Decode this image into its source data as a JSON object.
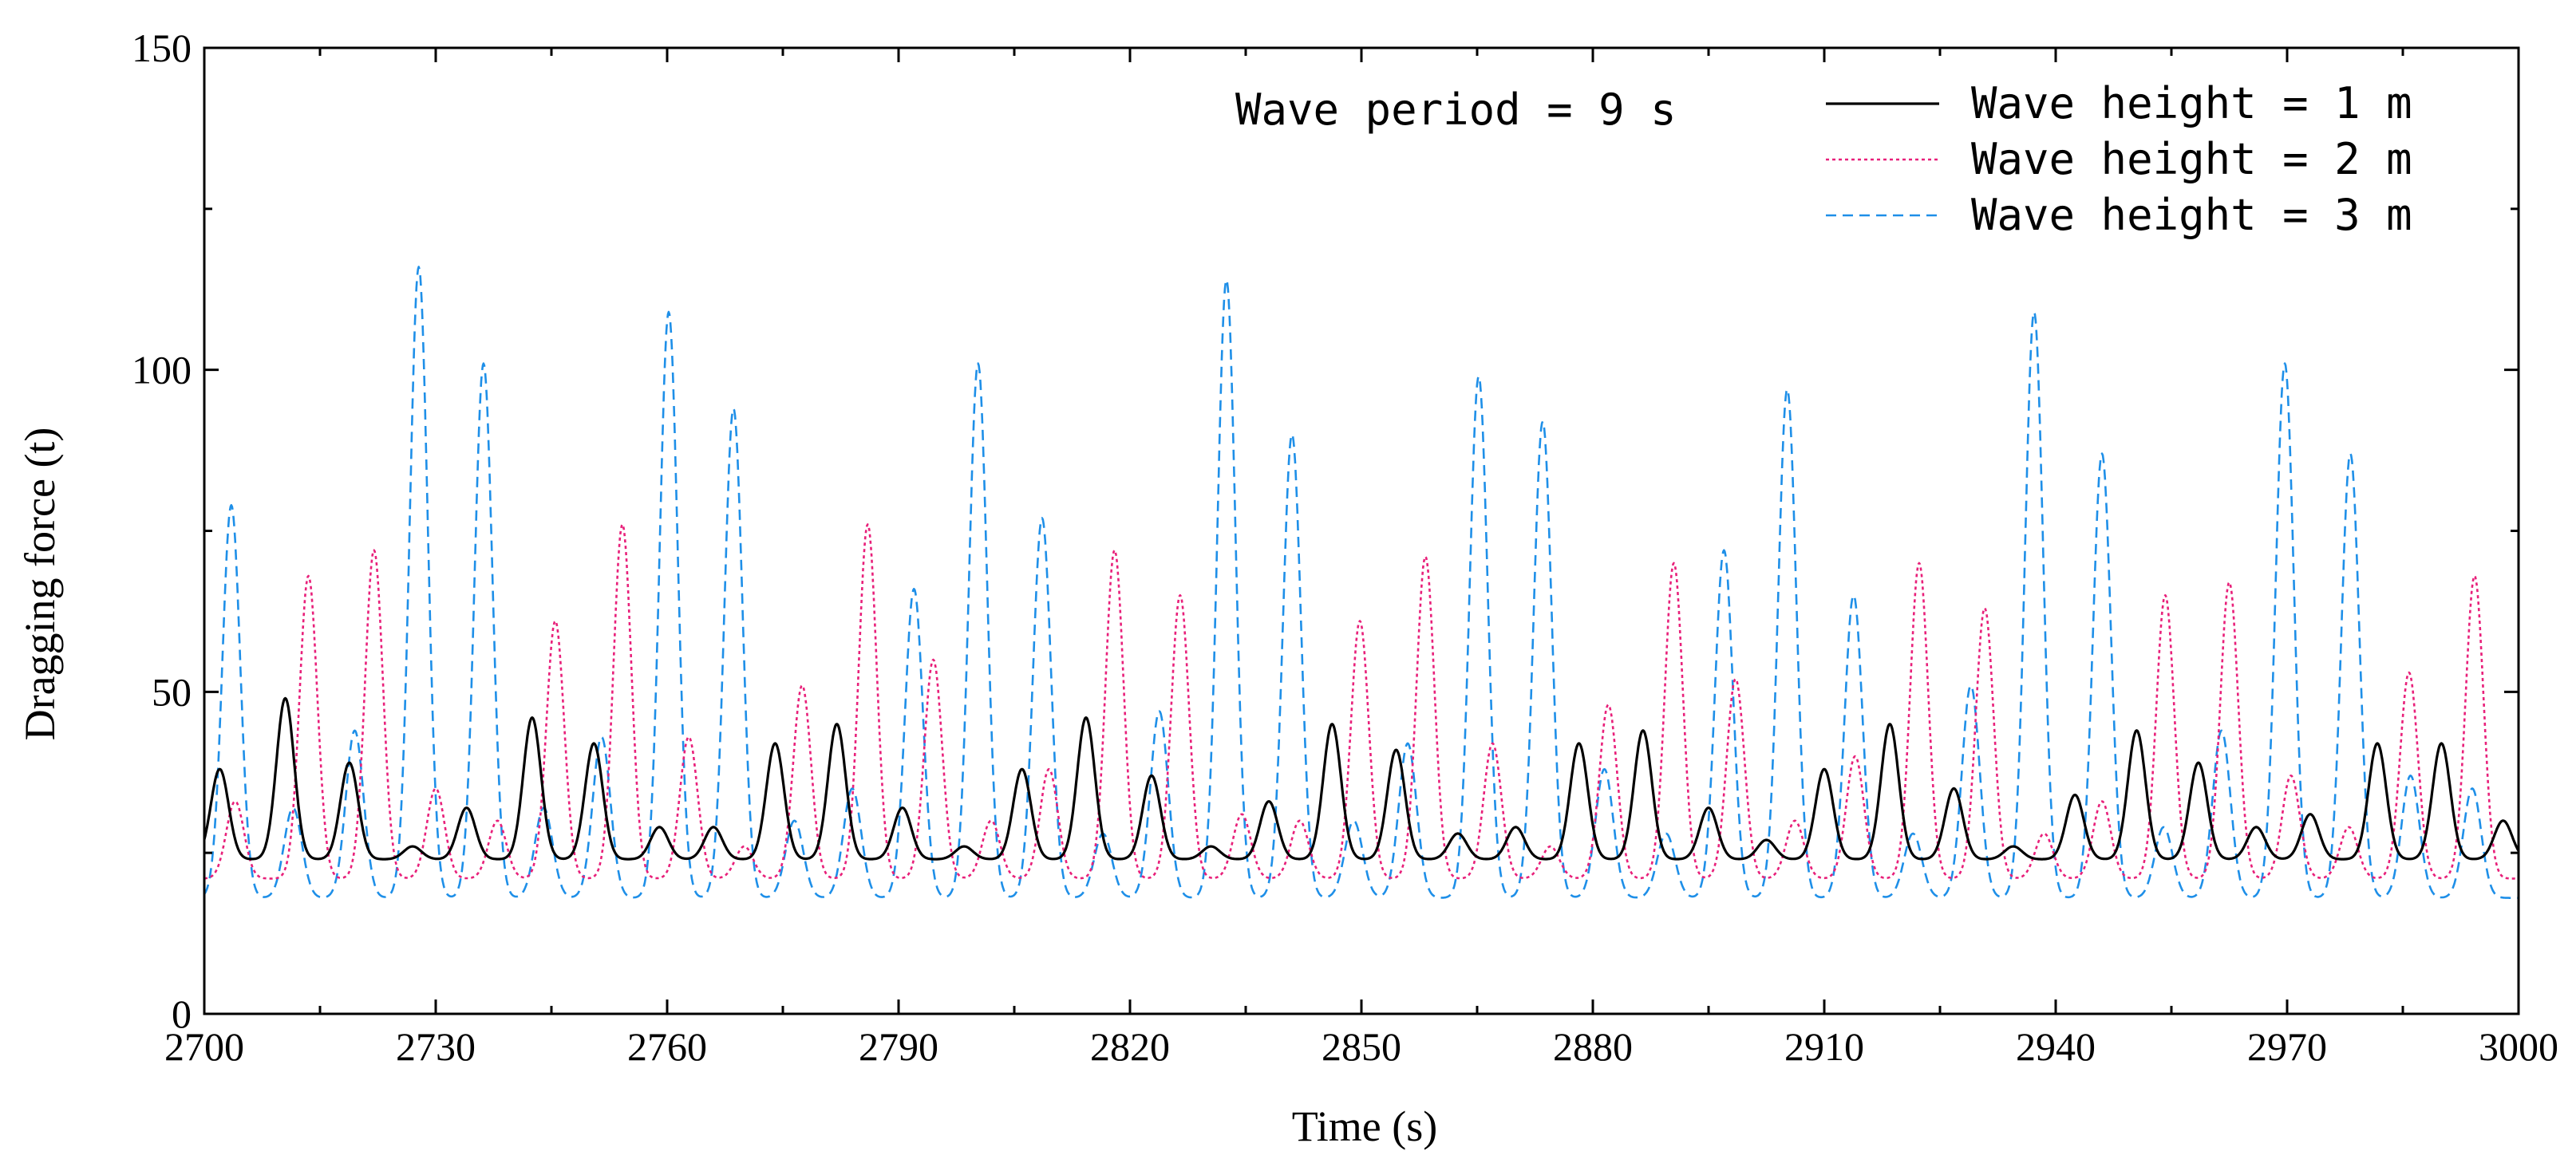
{
  "chart_data": {
    "type": "line",
    "annotation": "Wave period = 9 s",
    "xlabel": "Time (s)",
    "ylabel": "Dragging force (t)",
    "xlim": [
      2700,
      3000
    ],
    "ylim": [
      0,
      150
    ],
    "x_ticks": [
      2700,
      2730,
      2760,
      2790,
      2820,
      2850,
      2880,
      2910,
      2940,
      2970,
      3000
    ],
    "y_ticks": [
      0,
      50,
      100,
      150
    ],
    "x_tick_labels": [
      "2700",
      "2730",
      "2760",
      "2790",
      "2820",
      "2850",
      "2880",
      "2910",
      "2940",
      "2970",
      "3000"
    ],
    "y_tick_labels": [
      "0",
      "50",
      "100",
      "150"
    ],
    "legend_position": "top-right",
    "series": [
      {
        "name": "Wave height = 1 m",
        "color": "#000000",
        "style": "solid",
        "baseline": 24,
        "peaks": [
          [
            2702,
            38
          ],
          [
            2710.5,
            49
          ],
          [
            2718.8,
            39
          ],
          [
            2727,
            26
          ],
          [
            2734,
            32
          ],
          [
            2742.5,
            46
          ],
          [
            2750.5,
            42
          ],
          [
            2759,
            29
          ],
          [
            2766,
            29
          ],
          [
            2774,
            42
          ],
          [
            2782,
            45
          ],
          [
            2790.5,
            32
          ],
          [
            2798.5,
            26
          ],
          [
            2806,
            38
          ],
          [
            2814.3,
            46
          ],
          [
            2822.8,
            37
          ],
          [
            2830.5,
            26
          ],
          [
            2838,
            33
          ],
          [
            2846.2,
            45
          ],
          [
            2854.5,
            41
          ],
          [
            2862.5,
            28
          ],
          [
            2870,
            29
          ],
          [
            2878.2,
            42
          ],
          [
            2886.5,
            44
          ],
          [
            2895,
            32
          ],
          [
            2902.5,
            27
          ],
          [
            2910,
            38
          ],
          [
            2918.5,
            45
          ],
          [
            2926.8,
            35
          ],
          [
            2934.5,
            26
          ],
          [
            2942.5,
            34
          ],
          [
            2950.5,
            44
          ],
          [
            2958.5,
            39
          ],
          [
            2966,
            29
          ],
          [
            2973,
            31
          ],
          [
            2981.7,
            42
          ],
          [
            2990,
            42
          ],
          [
            2998,
            30
          ]
        ]
      },
      {
        "name": "Wave height = 2 m",
        "color": "#e8207a",
        "style": "dotted",
        "baseline": 21,
        "peaks": [
          [
            2704,
            33
          ],
          [
            2713.5,
            68
          ],
          [
            2722,
            72
          ],
          [
            2730,
            35
          ],
          [
            2738,
            30
          ],
          [
            2745.5,
            61
          ],
          [
            2754.2,
            76
          ],
          [
            2762.8,
            43
          ],
          [
            2770,
            26
          ],
          [
            2777.5,
            51
          ],
          [
            2786,
            76
          ],
          [
            2794.5,
            55
          ],
          [
            2802,
            30
          ],
          [
            2809.5,
            38
          ],
          [
            2818,
            72
          ],
          [
            2826.5,
            65
          ],
          [
            2834.5,
            31
          ],
          [
            2842,
            30
          ],
          [
            2849.8,
            61
          ],
          [
            2858.3,
            71
          ],
          [
            2867,
            42
          ],
          [
            2874.5,
            26
          ],
          [
            2882,
            48
          ],
          [
            2890.5,
            70
          ],
          [
            2898.5,
            52
          ],
          [
            2906.2,
            30
          ],
          [
            2914,
            40
          ],
          [
            2922.3,
            70
          ],
          [
            2930.8,
            63
          ],
          [
            2938.5,
            28
          ],
          [
            2946,
            33
          ],
          [
            2954.2,
            65
          ],
          [
            2962.5,
            67
          ],
          [
            2970.5,
            37
          ],
          [
            2978,
            29
          ],
          [
            2985.8,
            53
          ],
          [
            2994.3,
            68
          ]
        ]
      },
      {
        "name": "Wave height = 3 m",
        "color": "#1e8fe8",
        "style": "dashed",
        "baseline": 18,
        "peaks": [
          [
            2703.5,
            79
          ],
          [
            2711.5,
            32
          ],
          [
            2719.5,
            44
          ],
          [
            2727.8,
            116
          ],
          [
            2736.2,
            101
          ],
          [
            2744,
            32
          ],
          [
            2751.5,
            43
          ],
          [
            2760.2,
            109
          ],
          [
            2768.6,
            94
          ],
          [
            2776.5,
            30
          ],
          [
            2784,
            35
          ],
          [
            2792,
            66
          ],
          [
            2800.3,
            101
          ],
          [
            2808.6,
            77
          ],
          [
            2816.5,
            28
          ],
          [
            2823.8,
            47
          ],
          [
            2832.5,
            114
          ],
          [
            2841,
            90
          ],
          [
            2849,
            30
          ],
          [
            2856,
            42
          ],
          [
            2865.2,
            99
          ],
          [
            2873.5,
            92
          ],
          [
            2881.5,
            38
          ],
          [
            2889.5,
            28
          ],
          [
            2897,
            72
          ],
          [
            2905.2,
            97
          ],
          [
            2913.8,
            65
          ],
          [
            2921.5,
            28
          ],
          [
            2929,
            51
          ],
          [
            2937.2,
            109
          ],
          [
            2946,
            87
          ],
          [
            2954,
            29
          ],
          [
            2961.5,
            44
          ],
          [
            2969.7,
            101
          ],
          [
            2978.2,
            87
          ],
          [
            2986,
            37
          ],
          [
            2994,
            35
          ]
        ]
      }
    ]
  }
}
